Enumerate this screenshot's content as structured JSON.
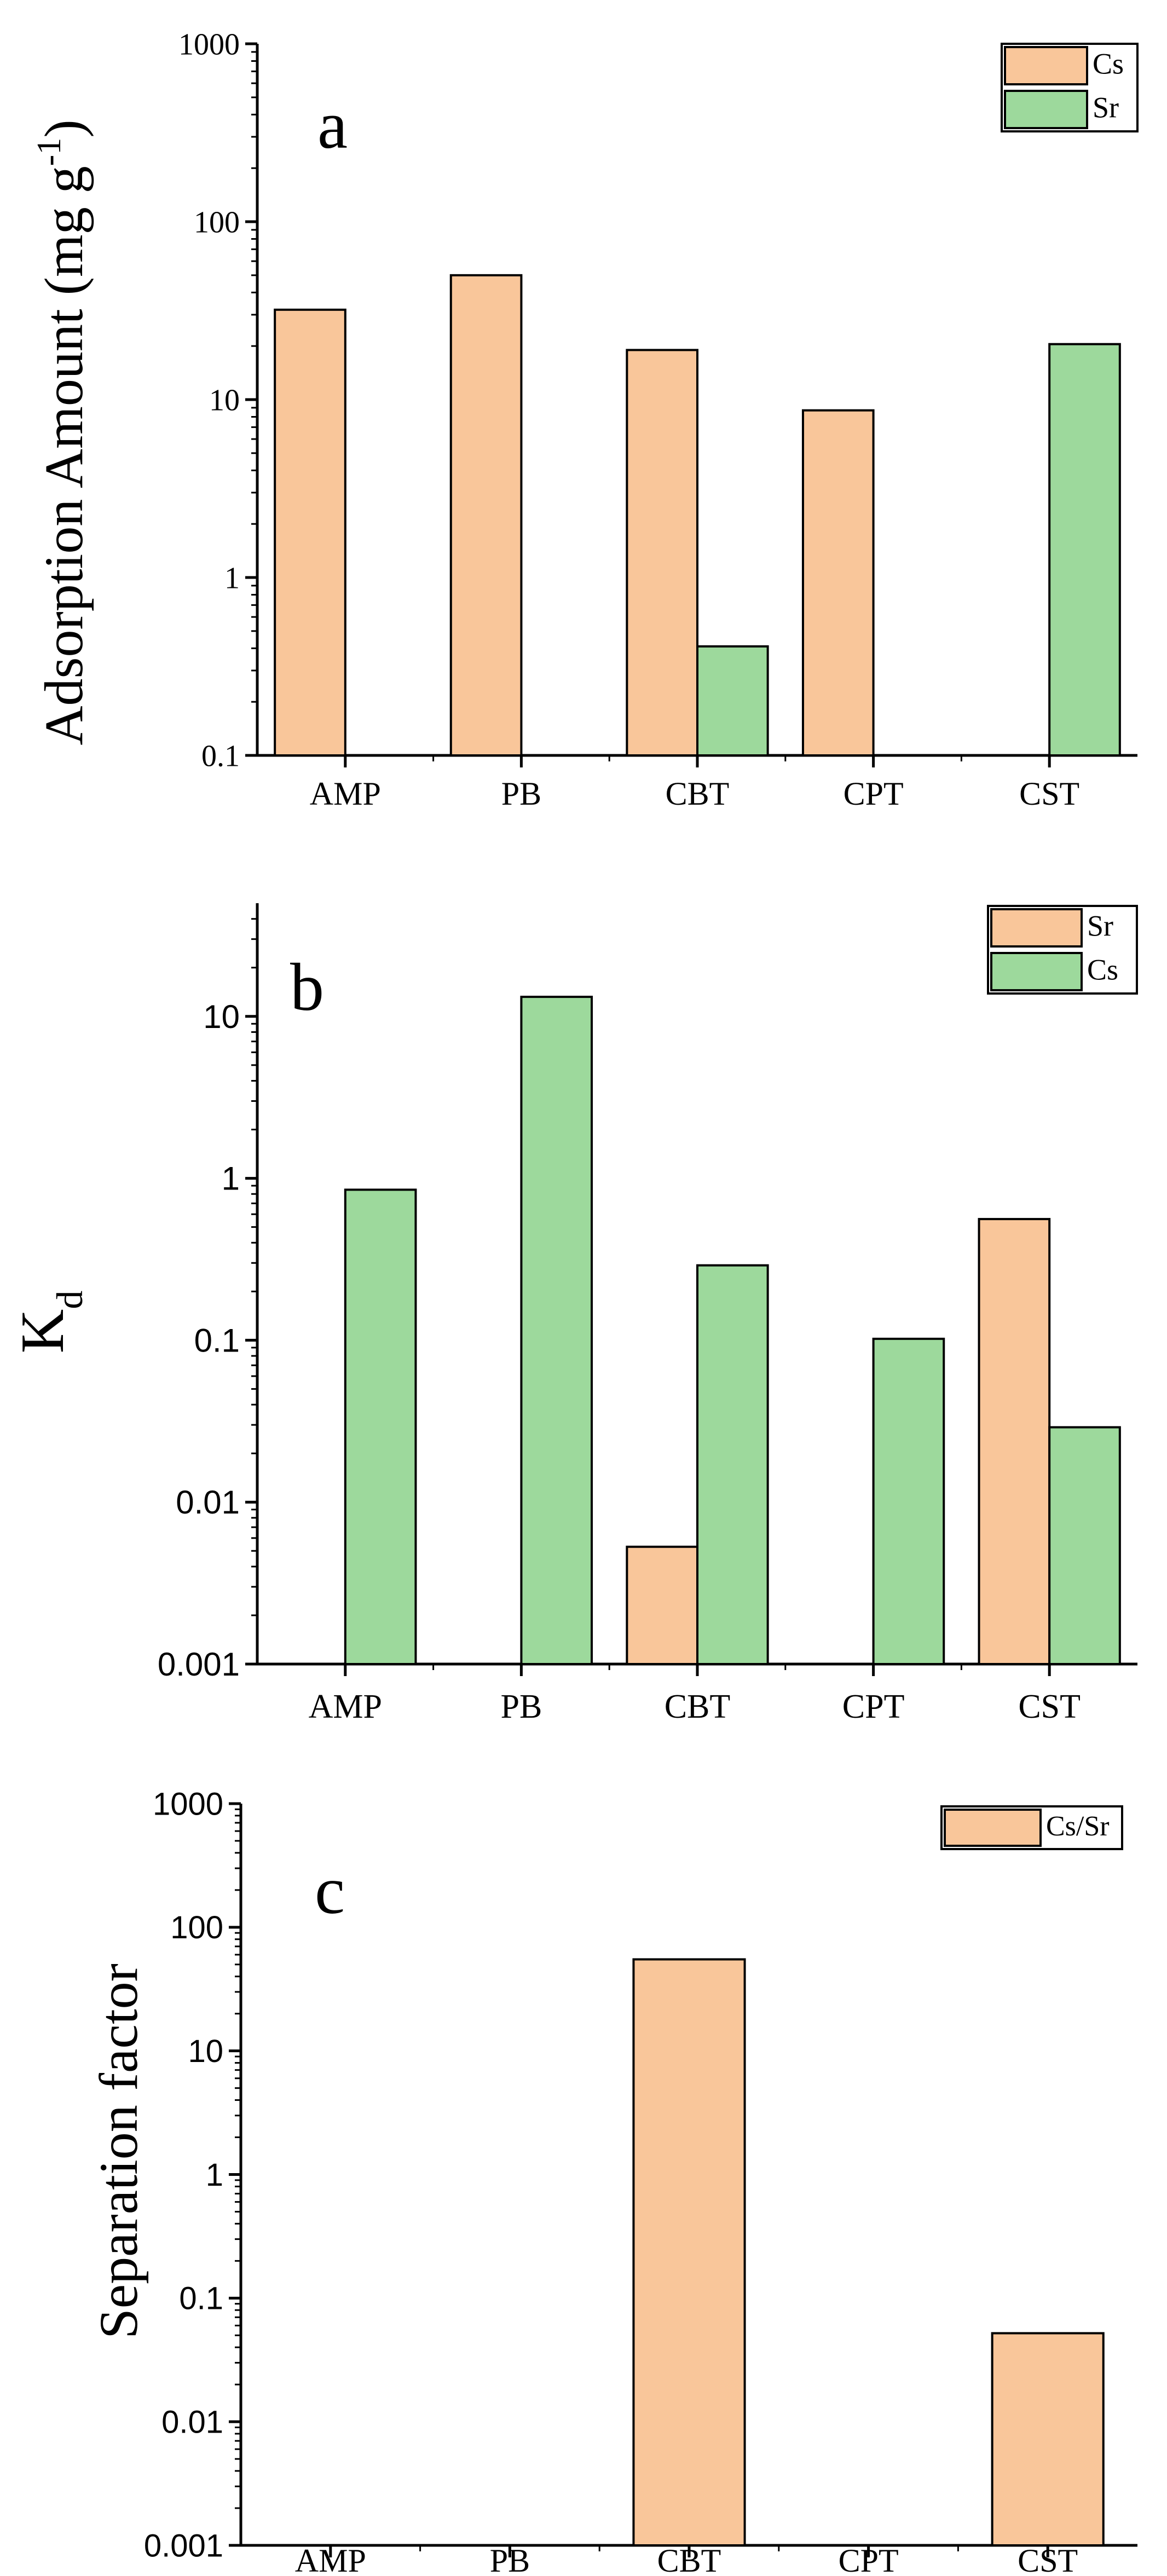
{
  "colors": {
    "cs_fill": "#F9C69A",
    "sr_fill": "#9DD99C",
    "axis": "#000000"
  },
  "chart_data": [
    {
      "type": "bar",
      "panel_label": "a",
      "scale": "log",
      "ylabel": "Adsorption Amount (mg g",
      "ylabel_superscript": "-1",
      "ylabel_suffix": ")",
      "xlabel": "",
      "ylim": [
        0.1,
        1000
      ],
      "ytick_labels": [
        "0.1",
        "1",
        "10",
        "100",
        "1000"
      ],
      "categories": [
        "AMP",
        "PB",
        "CBT",
        "CPT",
        "CST"
      ],
      "legend": {
        "placement": "top-right",
        "entries": [
          "Cs",
          "Sr"
        ]
      },
      "series": [
        {
          "name": "Cs",
          "color": "#F9C69A",
          "values": [
            32,
            50,
            19,
            8.7,
            null
          ]
        },
        {
          "name": "Sr",
          "color": "#9DD99C",
          "values": [
            null,
            null,
            0.41,
            null,
            20.5
          ]
        }
      ]
    },
    {
      "type": "bar",
      "panel_label": "b",
      "scale": "log",
      "ylabel": "K",
      "ylabel_subscript": "d",
      "xlabel": "",
      "ylim": [
        0.001,
        50
      ],
      "ytick_labels": [
        "0.001",
        "0.01",
        "0.1",
        "1",
        "10"
      ],
      "categories": [
        "AMP",
        "PB",
        "CBT",
        "CPT",
        "CST"
      ],
      "legend": {
        "placement": "top-right",
        "entries": [
          "Sr",
          "Cs"
        ]
      },
      "series": [
        {
          "name": "Sr",
          "color": "#F9C69A",
          "values": [
            null,
            null,
            0.0053,
            null,
            0.56
          ]
        },
        {
          "name": "Cs",
          "color": "#9DD99C",
          "values": [
            0.85,
            13.2,
            0.29,
            0.102,
            0.029
          ]
        }
      ]
    },
    {
      "type": "bar",
      "panel_label": "c",
      "scale": "log",
      "ylabel": "Separation factor",
      "xlabel": "",
      "ylim": [
        0.001,
        1000
      ],
      "ytick_labels": [
        "0.001",
        "0.01",
        "0.1",
        "1",
        "10",
        "100",
        "1000"
      ],
      "categories": [
        "AMP",
        "PB",
        "CBT",
        "CPT",
        "CST"
      ],
      "legend": {
        "placement": "top-right",
        "entries": [
          "Cs/Sr"
        ]
      },
      "series": [
        {
          "name": "Cs/Sr",
          "color": "#F9C69A",
          "values": [
            null,
            null,
            55,
            null,
            0.052
          ]
        }
      ]
    }
  ]
}
